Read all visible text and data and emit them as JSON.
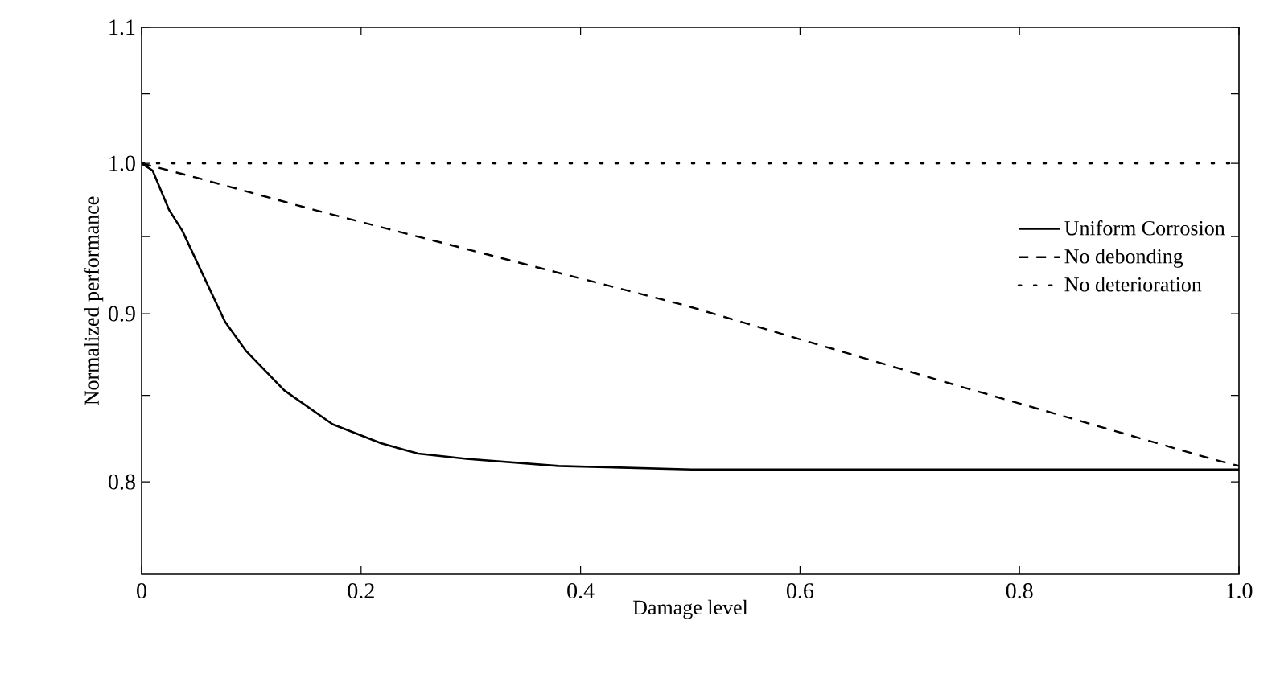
{
  "chart_data": {
    "type": "line",
    "xlabel": "Damage level",
    "ylabel": "Normalized performance",
    "log": "y",
    "xlim": [
      0,
      1
    ],
    "ylim": [
      0.75,
      1.1
    ],
    "xticks": [
      0,
      0.2,
      0.4,
      0.6,
      0.8,
      {
        "value": 1,
        "label": "1.0"
      }
    ],
    "yticks": [
      {
        "value": 0.8,
        "label": "0.8"
      },
      {
        "value": 0.85,
        "label": null
      },
      {
        "value": 0.9,
        "label": "0.9"
      },
      {
        "value": 0.95,
        "label": null
      },
      {
        "value": 1,
        "label": "1.0"
      },
      {
        "value": 1.05,
        "label": null
      },
      {
        "value": 1.1,
        "label": "1.1"
      }
    ],
    "legend": "right",
    "series": [
      {
        "name": "Uniform Corrosion",
        "color": "#000000",
        "line_style": "solid",
        "x": [
          0,
          0.01,
          0.025,
          0.037,
          0.076,
          0.095,
          0.13,
          0.174,
          0.218,
          0.252,
          0.296,
          0.38,
          0.501,
          0.75,
          1.0
        ],
        "values": [
          1.0,
          0.995,
          0.968,
          0.954,
          0.895,
          0.877,
          0.853,
          0.833,
          0.822,
          0.816,
          0.813,
          0.809,
          0.807,
          0.807,
          0.807
        ]
      },
      {
        "name": "No debonding",
        "color": "#000000",
        "line_style": "dashed",
        "x": [
          0,
          0.05,
          0.157,
          0.3,
          0.497,
          0.732,
          0.975,
          1.0
        ],
        "values": [
          1.0,
          0.99,
          0.968,
          0.941,
          0.905,
          0.858,
          0.813,
          0.809
        ]
      },
      {
        "name": "No deterioration",
        "color": "#000000",
        "line_style": "dotted",
        "x": [
          0,
          1.0
        ],
        "values": [
          1.0,
          1.0
        ]
      }
    ]
  }
}
